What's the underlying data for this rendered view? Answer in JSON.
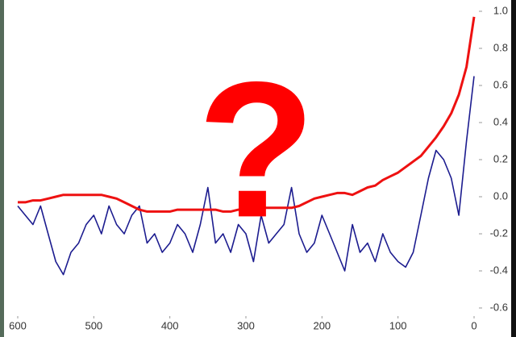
{
  "chart_data": {
    "type": "line",
    "annotation": "?",
    "x": [
      600,
      590,
      580,
      570,
      560,
      550,
      540,
      530,
      520,
      510,
      500,
      490,
      480,
      470,
      460,
      450,
      440,
      430,
      420,
      410,
      400,
      390,
      380,
      370,
      360,
      350,
      340,
      330,
      320,
      310,
      300,
      290,
      280,
      270,
      260,
      250,
      240,
      230,
      220,
      210,
      200,
      190,
      180,
      170,
      160,
      150,
      140,
      130,
      120,
      110,
      100,
      90,
      80,
      70,
      60,
      50,
      40,
      30,
      20,
      10,
      0
    ],
    "series": [
      {
        "color": "#1c1c8f",
        "values": [
          -0.05,
          -0.1,
          -0.15,
          -0.05,
          -0.2,
          -0.35,
          -0.42,
          -0.3,
          -0.25,
          -0.15,
          -0.1,
          -0.2,
          -0.05,
          -0.15,
          -0.2,
          -0.1,
          -0.05,
          -0.25,
          -0.2,
          -0.3,
          -0.25,
          -0.15,
          -0.2,
          -0.3,
          -0.15,
          0.05,
          -0.25,
          -0.2,
          -0.3,
          -0.15,
          -0.2,
          -0.35,
          -0.1,
          -0.25,
          -0.2,
          -0.15,
          0.05,
          -0.2,
          -0.3,
          -0.25,
          -0.1,
          -0.2,
          -0.3,
          -0.4,
          -0.15,
          -0.3,
          -0.25,
          -0.35,
          -0.2,
          -0.3,
          -0.35,
          -0.38,
          -0.3,
          -0.1,
          0.1,
          0.25,
          0.2,
          0.1,
          -0.1,
          0.3,
          0.65
        ]
      },
      {
        "color": "#ee1111",
        "values": [
          -0.03,
          -0.03,
          -0.02,
          -0.02,
          -0.01,
          0,
          0.01,
          0.01,
          0.01,
          0.01,
          0.01,
          0.01,
          0,
          -0.01,
          -0.03,
          -0.05,
          -0.07,
          -0.08,
          -0.08,
          -0.08,
          -0.08,
          -0.07,
          -0.07,
          -0.07,
          -0.07,
          -0.07,
          -0.07,
          -0.08,
          -0.08,
          -0.07,
          -0.07,
          -0.06,
          -0.06,
          -0.06,
          -0.06,
          -0.06,
          -0.06,
          -0.05,
          -0.03,
          -0.01,
          0,
          0.01,
          0.02,
          0.02,
          0.01,
          0.03,
          0.05,
          0.06,
          0.09,
          0.11,
          0.13,
          0.16,
          0.19,
          0.22,
          0.27,
          0.32,
          0.38,
          0.45,
          0.55,
          0.7,
          0.97
        ]
      }
    ],
    "xlim": [
      600,
      0
    ],
    "xticks": [
      600,
      500,
      400,
      300,
      200,
      100,
      0
    ],
    "ylim": [
      -0.6,
      1.0
    ],
    "yticks": [
      {
        "value": 1.0,
        "label": "1.0"
      },
      0.8,
      0.6,
      0.4,
      0.2,
      {
        "value": 0,
        "label": "0.0"
      },
      -0.2,
      -0.4,
      -0.6
    ]
  }
}
